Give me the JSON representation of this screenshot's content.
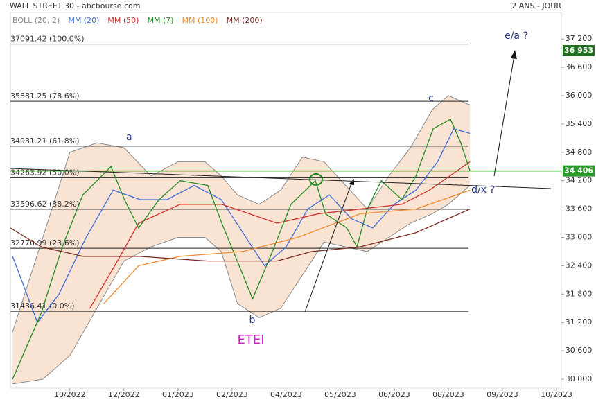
{
  "chart_data": {
    "type": "line",
    "title": "WALL STREET 30 - abcbourse.com",
    "subtitle": "2 ANS - JOUR",
    "xlim": [
      -1.1,
      9.09
    ],
    "xticks": [
      {
        "value": 0,
        "label": "10/2022"
      },
      {
        "value": 1,
        "label": "12/2022"
      },
      {
        "value": 2,
        "label": "01/2023"
      },
      {
        "value": 3,
        "label": "02/2023"
      },
      {
        "value": 4,
        "label": "04/2023"
      },
      {
        "value": 5,
        "label": "05/2023"
      },
      {
        "value": 6,
        "label": "06/2023"
      },
      {
        "value": 7,
        "label": "08/2023"
      },
      {
        "value": 8,
        "label": "09/2023"
      },
      {
        "value": 9,
        "label": "10/2023"
      }
    ],
    "ylim": [
      29810,
      37760
    ],
    "yticks": [
      {
        "value": 30000,
        "label": "30 000"
      },
      {
        "value": 30600,
        "label": "30 600"
      },
      {
        "value": 31200,
        "label": "31 200"
      },
      {
        "value": 31800,
        "label": "31 800"
      },
      {
        "value": 32400,
        "label": "32 400"
      },
      {
        "value": 33000,
        "label": "33 000"
      },
      {
        "value": 33600,
        "label": "33 600"
      },
      {
        "value": 34200,
        "label": "34 200"
      },
      {
        "value": 34800,
        "label": "34 800"
      },
      {
        "value": 35400,
        "label": "35 400"
      },
      {
        "value": 36000,
        "label": "36 000"
      },
      {
        "value": 36600,
        "label": "36 600"
      },
      {
        "value": 37200,
        "label": "37 200"
      }
    ],
    "bands": {
      "name": "BOLL (20, 2)",
      "color": "#8a8a8a",
      "fill": "#f9e3d3",
      "x": [
        -1.06,
        -0.5,
        0,
        0.5,
        1.0,
        1.5,
        2.0,
        2.5,
        2.8,
        3.1,
        3.5,
        3.9,
        4.3,
        4.7,
        5.1,
        5.5,
        5.9,
        6.3,
        6.7,
        7.0,
        7.4
      ],
      "upper": [
        31000,
        33000,
        34800,
        35000,
        34900,
        34300,
        34600,
        34600,
        34300,
        33900,
        33700,
        34000,
        34700,
        34600,
        34100,
        33600,
        34300,
        34900,
        35700,
        36000,
        35800
      ],
      "lower": [
        29900,
        30000,
        30500,
        31500,
        32500,
        32800,
        33000,
        33000,
        32700,
        31600,
        31300,
        31500,
        32200,
        32900,
        32800,
        32700,
        33000,
        33300,
        33500,
        33700,
        34100
      ]
    },
    "series": [
      {
        "name": "MM (20)",
        "color": "#3d6bdb",
        "x": [
          -1.06,
          -0.6,
          -0.2,
          0.3,
          0.8,
          1.3,
          1.8,
          2.3,
          2.8,
          3.2,
          3.6,
          4.0,
          4.4,
          4.8,
          5.2,
          5.6,
          6.0,
          6.4,
          6.8,
          7.1,
          7.4
        ],
        "values": [
          32600,
          31200,
          31800,
          33000,
          34000,
          33800,
          33800,
          34100,
          33800,
          33100,
          32400,
          32800,
          33600,
          33900,
          33400,
          33200,
          33700,
          34000,
          34600,
          35300,
          35200
        ]
      },
      {
        "name": "MM (50)",
        "color": "#d0302a",
        "x": [
          0.37,
          0.88,
          1.27,
          2.04,
          2.81,
          3.83,
          4.6,
          5.37,
          6.14,
          6.65,
          7.4
        ],
        "values": [
          31500,
          32500,
          33300,
          33700,
          33700,
          33300,
          33500,
          33600,
          33700,
          34000,
          34600
        ]
      },
      {
        "name": "MM (7)",
        "color": "#1f8a1f",
        "x": [
          -1.06,
          -0.53,
          -0.14,
          0.24,
          0.76,
          1.01,
          1.27,
          1.65,
          2.04,
          2.55,
          2.81,
          3.06,
          3.38,
          3.71,
          4.09,
          4.54,
          4.73,
          5.12,
          5.31,
          5.5,
          5.76,
          6.14,
          6.4,
          6.72,
          7.04,
          7.23,
          7.4
        ],
        "values": [
          30000,
          31400,
          32800,
          33900,
          34500,
          33800,
          33200,
          33800,
          34200,
          34100,
          33300,
          32600,
          31700,
          32600,
          33700,
          34200,
          33500,
          33200,
          32800,
          33600,
          34200,
          33800,
          34300,
          35300,
          35500,
          35000,
          34406
        ]
      },
      {
        "name": "MM (100)",
        "color": "#f08a2c",
        "x": [
          0.63,
          1.27,
          2.04,
          3.19,
          4.22,
          5.37,
          6.4,
          7.4
        ],
        "values": [
          31600,
          32400,
          32600,
          32700,
          33000,
          33500,
          33600,
          34000
        ]
      },
      {
        "name": "MM (200)",
        "color": "#7a2b22",
        "x": [
          -1.1,
          -0.53,
          0.24,
          1.27,
          2.55,
          3.83,
          4.47,
          5.37,
          6.4,
          7.4
        ],
        "values": [
          33200,
          32800,
          32600,
          32600,
          32500,
          32500,
          32700,
          32800,
          33100,
          33600
        ]
      }
    ],
    "levels": [
      {
        "value": 37091.42,
        "label": "37091.42 (100.0%)"
      },
      {
        "value": 35881.25,
        "label": "35881.25 (78.6%)"
      },
      {
        "value": 34931.21,
        "label": "34931.21 (61.8%)"
      },
      {
        "value": 34263.92,
        "label": "34263.92 (50.0%)"
      },
      {
        "value": 33596.62,
        "label": "33596.62 (38.2%)"
      },
      {
        "value": 32770.99,
        "label": "32770.99 (23.6%)"
      },
      {
        "value": 31436.41,
        "label": "31436.41 (0.0%)"
      }
    ],
    "markers": [
      {
        "value": 36953,
        "label": "36 953",
        "color": "#1d6b1d"
      },
      {
        "value": 34406,
        "label": "34 406",
        "color": "#2a9a2a"
      }
    ],
    "annotations": [
      "a",
      "b",
      "c",
      "e/a ?",
      "d/x ?",
      "ETEI"
    ]
  }
}
